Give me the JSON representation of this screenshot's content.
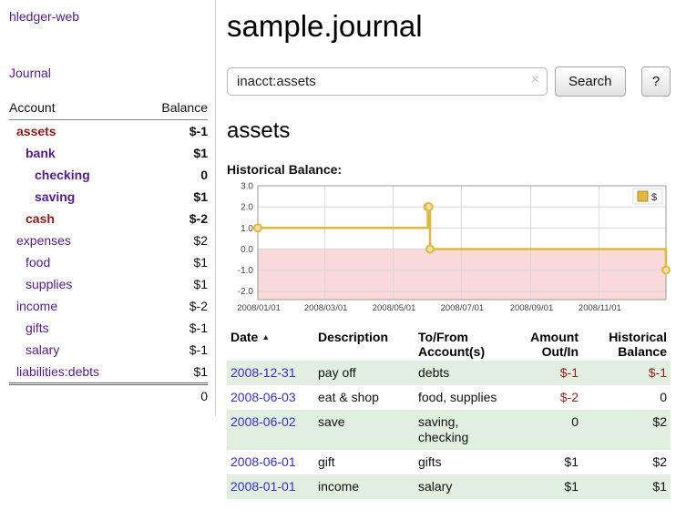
{
  "app": {
    "title": "hledger-web"
  },
  "sidebar": {
    "journal_link": "Journal",
    "accounts_table": {
      "headers": {
        "account": "Account",
        "balance": "Balance"
      },
      "accounts": [
        {
          "name": "assets",
          "balance": "$-1",
          "level": 0,
          "bold": true,
          "name_style": "negative",
          "balance_style": "negative"
        },
        {
          "name": "bank",
          "balance": "$1",
          "level": 1,
          "bold": true
        },
        {
          "name": "checking",
          "balance": "0",
          "level": 2,
          "bold": true
        },
        {
          "name": "saving",
          "balance": "$1",
          "level": 2,
          "bold": true
        },
        {
          "name": "cash",
          "balance": "$-2",
          "level": 1,
          "bold": true,
          "name_style": "negative",
          "balance_style": "negative"
        },
        {
          "name": "expenses",
          "balance": "$2",
          "level": 0,
          "bold": false
        },
        {
          "name": "food",
          "balance": "$1",
          "level": 1,
          "bold": false
        },
        {
          "name": "supplies",
          "balance": "$1",
          "level": 1,
          "bold": false
        },
        {
          "name": "income",
          "balance": "$-2",
          "level": 0,
          "bold": false,
          "balance_style": "negative-light"
        },
        {
          "name": "gifts",
          "balance": "$-1",
          "level": 1,
          "bold": false,
          "balance_style": "negative-light"
        },
        {
          "name": "salary",
          "balance": "$-1",
          "level": 1,
          "bold": false,
          "balance_style": "negative-light"
        },
        {
          "name": "liabilities:debts",
          "balance": "$1",
          "level": 0,
          "bold": false
        }
      ],
      "total": "0"
    }
  },
  "main": {
    "title": "sample.journal",
    "search": {
      "value": "inacct:assets",
      "clear_icon": "×",
      "button_label": "Search",
      "help_label": "?"
    },
    "account_heading": "assets",
    "chart_title": "Historical Balance:"
  },
  "chart_data": {
    "type": "line",
    "title": "Historical Balance",
    "step": true,
    "series": [
      {
        "name": "$",
        "color": "#dfb83e",
        "points": [
          {
            "date": "2008-01-01",
            "value": 1
          },
          {
            "date": "2008-06-01",
            "value": 2
          },
          {
            "date": "2008-06-02",
            "value": 2
          },
          {
            "date": "2008-06-03",
            "value": 0
          },
          {
            "date": "2008-12-31",
            "value": -1
          }
        ]
      }
    ],
    "x_range": [
      "2008-01-01",
      "2008-12-31"
    ],
    "x_ticks": [
      "2008/01/01",
      "2008/03/01",
      "2008/05/01",
      "2008/07/01",
      "2008/09/01",
      "2008/11/01"
    ],
    "y_ticks": [
      3.0,
      2.0,
      1.0,
      0.0,
      -1.0,
      -2.0
    ],
    "ylim": [
      -2.4,
      3.0
    ],
    "grid": true,
    "legend_position": "top-right",
    "negative_region_color": "#f9d9d9",
    "marker_fill": "#f6e1a0",
    "plot_border_color": "#999999",
    "grid_color": "#d8d8d8"
  },
  "register": {
    "headers": [
      "Date",
      "Description",
      "To/From Account(s)",
      "Amount Out/In",
      "Historical Balance"
    ],
    "sort_indicator": "▲",
    "rows": [
      {
        "date": "2008-12-31",
        "description": "pay off",
        "accounts": "debts",
        "amount": "$-1",
        "amount_negative": true,
        "balance": "$-1",
        "balance_negative": true
      },
      {
        "date": "2008-06-03",
        "description": "eat & shop",
        "accounts": "food, supplies",
        "amount": "$-2",
        "amount_negative": true,
        "balance": "0",
        "balance_negative": false
      },
      {
        "date": "2008-06-02",
        "description": "save",
        "accounts": "saving, checking",
        "amount": "0",
        "amount_negative": false,
        "balance": "$2",
        "balance_negative": false
      },
      {
        "date": "2008-06-01",
        "description": "gift",
        "accounts": "gifts",
        "amount": "$1",
        "amount_negative": false,
        "balance": "$2",
        "balance_negative": false
      },
      {
        "date": "2008-01-01",
        "description": "income",
        "accounts": "salary",
        "amount": "$1",
        "amount_negative": false,
        "balance": "$1",
        "balance_negative": false
      }
    ]
  },
  "colors": {
    "link_purple": "#551A8B",
    "date_link": "#3a2ecd",
    "negative": "#9e1818",
    "negative_light": "#b46a6a",
    "register_negative": "#a02020",
    "row_green": "#e0efe0",
    "chart_line": "#dfb83e"
  }
}
